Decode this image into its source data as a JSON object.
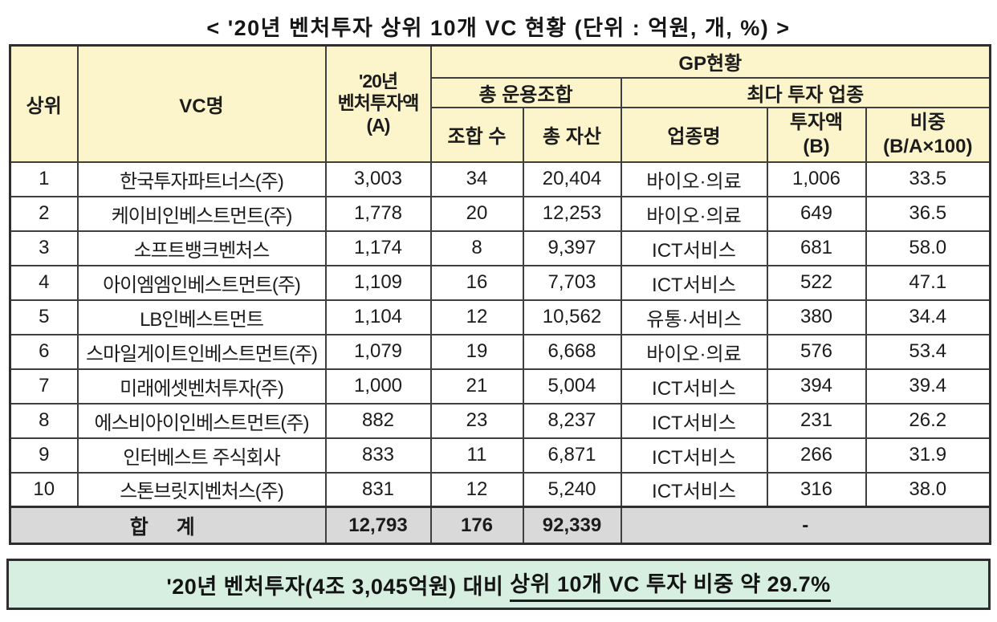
{
  "title": "< '20년 벤처투자 상위 10개 VC 현황 (단위 : 억원, 개, %) >",
  "colors": {
    "header_bg": "#fcf5cc",
    "total_row_bg": "#d9d9d9",
    "footer_bg": "#d7efe1",
    "border": "#2e2e2e"
  },
  "table": {
    "headers": {
      "rank": "상위",
      "vc_name": "VC명",
      "invest_2020": "'20년\n벤처투자액\n(A)",
      "gp_status": "GP현황",
      "total_funds_group": "총 운용조합",
      "top_sector_group": "최다 투자 업종",
      "fund_count": "조합 수",
      "total_assets": "총 자산",
      "sector_name": "업종명",
      "invest_amount": "투자액\n(B)",
      "share": "비중\n(B/A×100)"
    },
    "rows": [
      {
        "rank": "1",
        "name": "한국투자파트너스(주)",
        "invest": "3,003",
        "funds": "34",
        "assets": "20,404",
        "sector": "바이오·의료",
        "amount": "1,006",
        "share": "33.5"
      },
      {
        "rank": "2",
        "name": "케이비인베스트먼트(주)",
        "invest": "1,778",
        "funds": "20",
        "assets": "12,253",
        "sector": "바이오·의료",
        "amount": "649",
        "share": "36.5"
      },
      {
        "rank": "3",
        "name": "소프트뱅크벤처스",
        "invest": "1,174",
        "funds": "8",
        "assets": "9,397",
        "sector": "ICT서비스",
        "amount": "681",
        "share": "58.0"
      },
      {
        "rank": "4",
        "name": "아이엠엠인베스트먼트(주)",
        "invest": "1,109",
        "funds": "16",
        "assets": "7,703",
        "sector": "ICT서비스",
        "amount": "522",
        "share": "47.1"
      },
      {
        "rank": "5",
        "name": "LB인베스트먼트",
        "invest": "1,104",
        "funds": "12",
        "assets": "10,562",
        "sector": "유통·서비스",
        "amount": "380",
        "share": "34.4"
      },
      {
        "rank": "6",
        "name": "스마일게이트인베스트먼트(주)",
        "invest": "1,079",
        "funds": "19",
        "assets": "6,668",
        "sector": "바이오·의료",
        "amount": "576",
        "share": "53.4"
      },
      {
        "rank": "7",
        "name": "미래에셋벤처투자(주)",
        "invest": "1,000",
        "funds": "21",
        "assets": "5,004",
        "sector": "ICT서비스",
        "amount": "394",
        "share": "39.4"
      },
      {
        "rank": "8",
        "name": "에스비아이인베스트먼트(주)",
        "invest": "882",
        "funds": "23",
        "assets": "8,237",
        "sector": "ICT서비스",
        "amount": "231",
        "share": "26.2"
      },
      {
        "rank": "9",
        "name": "인터베스트 주식회사",
        "invest": "833",
        "funds": "11",
        "assets": "6,871",
        "sector": "ICT서비스",
        "amount": "266",
        "share": "31.9"
      },
      {
        "rank": "10",
        "name": "스톤브릿지벤처스(주)",
        "invest": "831",
        "funds": "12",
        "assets": "5,240",
        "sector": "ICT서비스",
        "amount": "316",
        "share": "38.0"
      }
    ],
    "total": {
      "label": "합 계",
      "invest": "12,793",
      "funds": "176",
      "assets": "92,339",
      "dash": "-"
    }
  },
  "footer": {
    "prefix": "'20년 벤처투자(4조 3,045억원) 대비",
    "underlined": "상위 10개 VC 투자 비중 약 29.7%"
  }
}
